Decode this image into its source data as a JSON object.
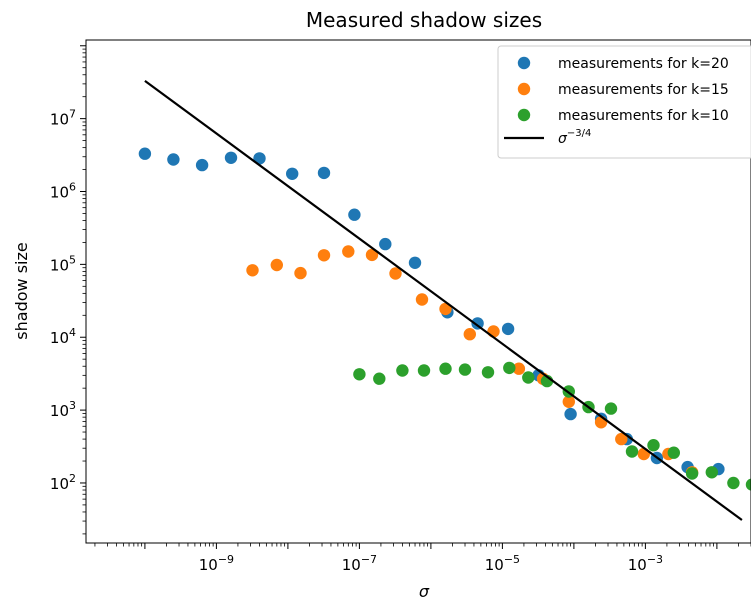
{
  "chart_data": {
    "type": "scatter",
    "title": "Measured shadow sizes",
    "xlabel": "σ",
    "ylabel": "shadow size",
    "xscale": "log",
    "yscale": "log",
    "xlim": [
      1.5e-11,
      0.03
    ],
    "ylim": [
      15,
      120000000
    ],
    "x_ticks": [
      {
        "value": 1e-09,
        "base": "10",
        "exp": "−9"
      },
      {
        "value": 1e-07,
        "base": "10",
        "exp": "−7"
      },
      {
        "value": 1e-05,
        "base": "10",
        "exp": "−5"
      },
      {
        "value": 0.001,
        "base": "10",
        "exp": "−3"
      }
    ],
    "y_ticks": [
      {
        "value": 100,
        "base": "10",
        "exp": "2"
      },
      {
        "value": 1000,
        "base": "10",
        "exp": "3"
      },
      {
        "value": 10000,
        "base": "10",
        "exp": "4"
      },
      {
        "value": 100000,
        "base": "10",
        "exp": "5"
      },
      {
        "value": 1000000,
        "base": "10",
        "exp": "6"
      },
      {
        "value": 10000000,
        "base": "10",
        "exp": "7"
      }
    ],
    "legend_position": "top-right",
    "series": [
      {
        "name": "measurements for k=20",
        "color": "#1f77b4",
        "points": [
          [
            1e-10,
            3300000
          ],
          [
            2.5e-10,
            2750000
          ],
          [
            6.3e-10,
            2300000
          ],
          [
            1.6e-09,
            2900000
          ],
          [
            4e-09,
            2850000
          ],
          [
            1.15e-08,
            1750000
          ],
          [
            3.2e-08,
            1800000
          ],
          [
            8.5e-08,
            480000
          ],
          [
            2.3e-07,
            190000
          ],
          [
            6e-07,
            105000
          ],
          [
            1.7e-06,
            22000
          ],
          [
            4.5e-06,
            15500
          ],
          [
            1.2e-05,
            13000
          ],
          [
            3.2e-05,
            3000
          ],
          [
            9e-05,
            880
          ],
          [
            0.00024,
            760
          ],
          [
            0.00055,
            400
          ],
          [
            0.00145,
            220
          ],
          [
            0.0039,
            165
          ],
          [
            0.0105,
            155
          ]
        ]
      },
      {
        "name": "measurements for k=15",
        "color": "#ff7f0e",
        "points": [
          [
            3.2e-09,
            83000
          ],
          [
            7e-09,
            98000
          ],
          [
            1.5e-08,
            76000
          ],
          [
            3.2e-08,
            133000
          ],
          [
            7e-08,
            150000
          ],
          [
            1.5e-07,
            135000
          ],
          [
            3.2e-07,
            75000
          ],
          [
            7.5e-07,
            33000
          ],
          [
            1.6e-06,
            24500
          ],
          [
            3.5e-06,
            11000
          ],
          [
            7.5e-06,
            12000
          ],
          [
            1.7e-05,
            3700
          ],
          [
            3.7e-05,
            2700
          ],
          [
            8.5e-05,
            1300
          ],
          [
            0.00024,
            680
          ],
          [
            0.00046,
            400
          ],
          [
            0.00095,
            250
          ],
          [
            0.0021,
            250
          ],
          [
            0.0045,
            140
          ]
        ]
      },
      {
        "name": "measurements for k=10",
        "color": "#2ca02c",
        "points": [
          [
            1e-07,
            3100
          ],
          [
            1.9e-07,
            2700
          ],
          [
            4e-07,
            3500
          ],
          [
            8e-07,
            3500
          ],
          [
            1.6e-06,
            3700
          ],
          [
            3e-06,
            3600
          ],
          [
            6.3e-06,
            3300
          ],
          [
            1.25e-05,
            3800
          ],
          [
            2.3e-05,
            2800
          ],
          [
            4.2e-05,
            2500
          ],
          [
            8.5e-05,
            1800
          ],
          [
            0.00016,
            1100
          ],
          [
            0.00033,
            1050
          ],
          [
            0.00065,
            270
          ],
          [
            0.0013,
            330
          ],
          [
            0.0025,
            260
          ],
          [
            0.0045,
            135
          ],
          [
            0.0085,
            140
          ],
          [
            0.017,
            100
          ],
          [
            0.031,
            95
          ]
        ]
      }
    ],
    "fit_line": {
      "name": "σ^{−3/4}",
      "color": "#000000",
      "x": [
        1e-10,
        0.0224
      ],
      "y": [
        33000000,
        31
      ]
    }
  },
  "legend": {
    "entries": [
      {
        "label": "measurements for k=20",
        "color": "#1f77b4",
        "kind": "marker"
      },
      {
        "label": "measurements for k=15",
        "color": "#ff7f0e",
        "kind": "marker"
      },
      {
        "label": "measurements for k=10",
        "color": "#2ca02c",
        "kind": "marker"
      },
      {
        "label_base": "σ",
        "label_exp": "−3/4",
        "color": "#000000",
        "kind": "line"
      }
    ]
  }
}
